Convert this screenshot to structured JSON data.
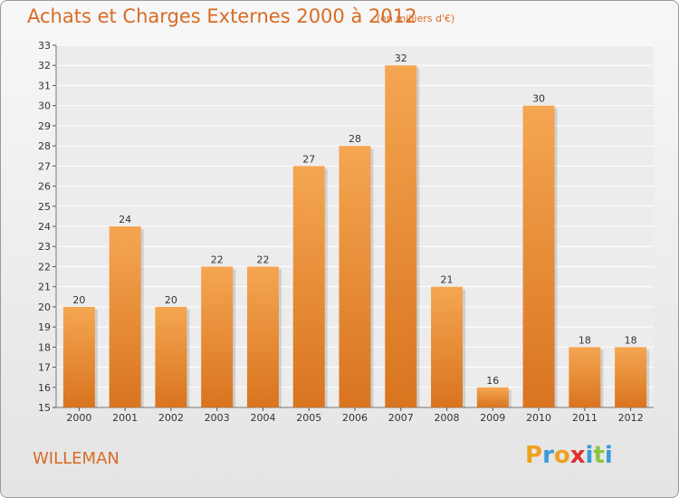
{
  "chart_data": {
    "type": "bar",
    "title": "Achats et Charges Externes 2000 à 2012",
    "subtitle": "(en milliers d'€)",
    "categories": [
      "2000",
      "2001",
      "2002",
      "2003",
      "2004",
      "2005",
      "2006",
      "2007",
      "2008",
      "2009",
      "2010",
      "2011",
      "2012"
    ],
    "values": [
      20,
      24,
      20,
      22,
      22,
      27,
      28,
      32,
      21,
      16,
      30,
      18,
      18
    ],
    "xlabel": "",
    "ylabel": "",
    "ylim": [
      15,
      33
    ],
    "yticks": [
      15,
      16,
      17,
      18,
      19,
      20,
      21,
      22,
      23,
      24,
      25,
      26,
      27,
      28,
      29,
      30,
      31,
      32,
      33
    ],
    "grid": true,
    "bar_color_top": "#f5a651",
    "bar_color_bottom": "#d9741f"
  },
  "footer": {
    "commune": "WILLEMAN",
    "logo_letters": [
      "P",
      "r",
      "o",
      "x",
      "i",
      "t",
      "i"
    ],
    "logo_colors": [
      "#f0a020",
      "#3a9bd8",
      "#f0a020",
      "#e03030",
      "#3a9bd8",
      "#8cc63f",
      "#3a9bd8"
    ]
  }
}
